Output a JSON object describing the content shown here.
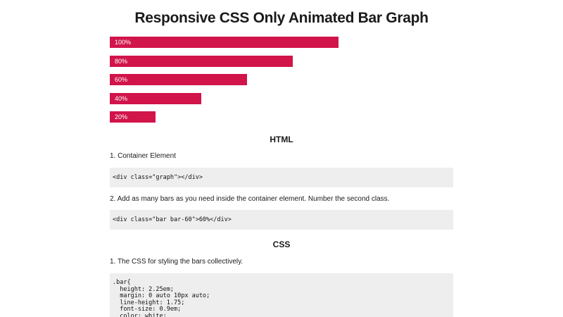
{
  "page": {
    "title": "Responsive CSS Only Animated Bar Graph"
  },
  "graph": {
    "bars": [
      {
        "label": "100%",
        "value": 100
      },
      {
        "label": "80%",
        "value": 80
      },
      {
        "label": "60%",
        "value": 60
      },
      {
        "label": "40%",
        "value": 40
      },
      {
        "label": "20%",
        "value": 20
      }
    ],
    "bar_color": "#d1144a"
  },
  "html_section": {
    "heading": "HTML",
    "step1": "1. Container Element",
    "code1": "<div class=\"graph\"></div>",
    "step2": "2. Add as many bars as you need inside the container element. Number the second class.",
    "code2": "<div class=\"bar bar-60\">60%</div>"
  },
  "css_section": {
    "heading": "CSS",
    "step1": "1. The CSS for styling the bars collectively.",
    "code1": ".bar{\n  height: 2.25em;\n  margin: 0 auto 10px auto;\n  line-height: 1.75;\n  font-size: 0.9em;\n  color: white;"
  }
}
